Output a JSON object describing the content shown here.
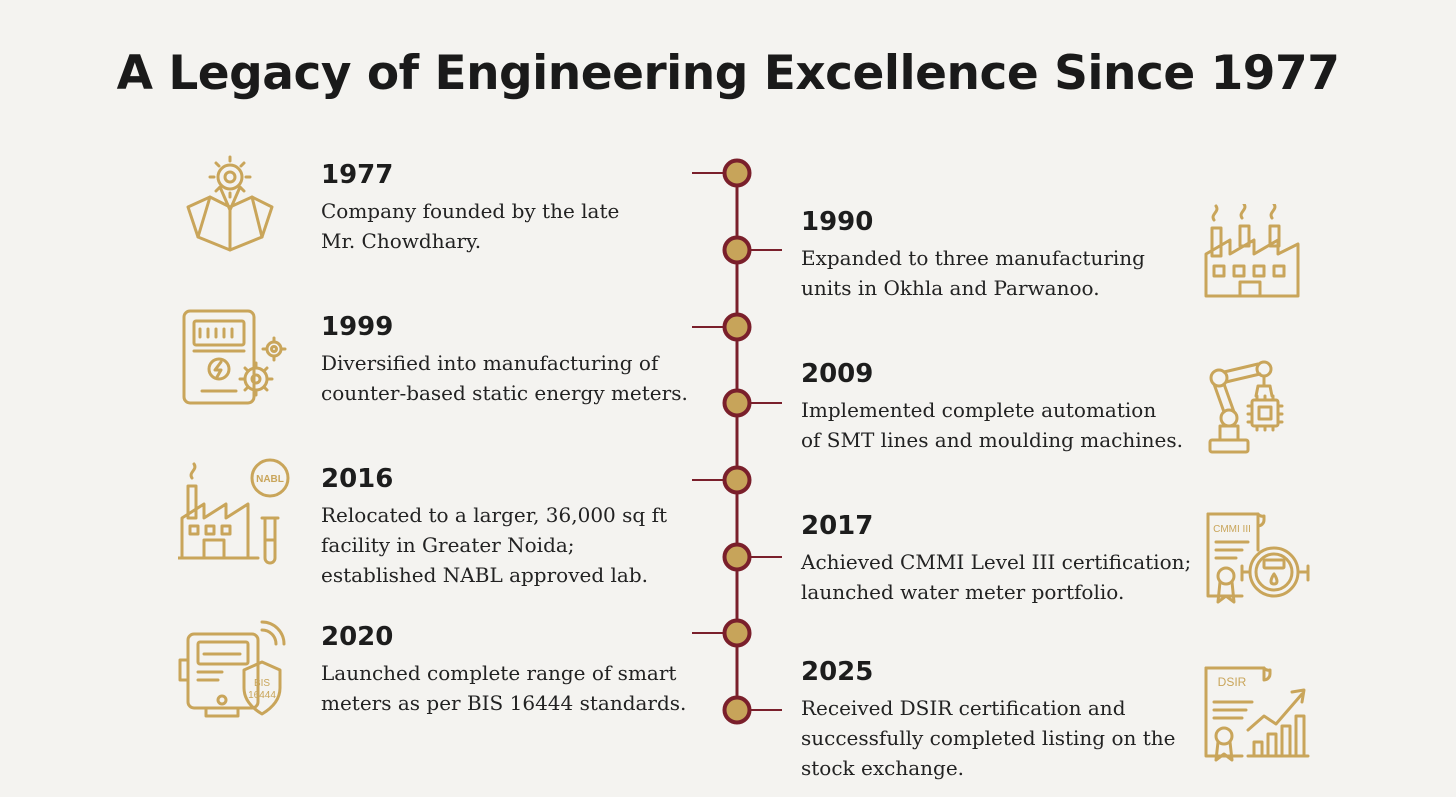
{
  "title": "A Legacy of Engineering Excellence Since 1977",
  "colors": {
    "line": "#7a1f2b",
    "node_fill": "#c7a45a",
    "icon": "#c9a55a",
    "background": "#f4f3f0"
  },
  "milestones": [
    {
      "side": "left",
      "year": "1977",
      "lines": [
        "Company founded by the late",
        "Mr. Chowdhary."
      ],
      "icon": "map-location-gear-icon"
    },
    {
      "side": "right",
      "year": "1990",
      "lines": [
        "Expanded to three manufacturing",
        "units in Okhla and Parwanoo."
      ],
      "icon": "factory-icon"
    },
    {
      "side": "left",
      "year": "1999",
      "lines": [
        "Diversified into manufacturing of",
        "counter-based static energy meters."
      ],
      "icon": "energy-meter-gears-icon"
    },
    {
      "side": "right",
      "year": "2009",
      "lines": [
        "Implemented complete automation",
        "of SMT lines and moulding machines."
      ],
      "icon": "robotic-arm-chip-icon"
    },
    {
      "side": "left",
      "year": "2016",
      "lines": [
        "Relocated to a larger, 36,000 sq ft",
        "facility in Greater Noida;",
        "established NABL approved lab."
      ],
      "icon": "factory-nabl-lab-icon",
      "badge": "NABL"
    },
    {
      "side": "right",
      "year": "2017",
      "lines": [
        "Achieved CMMI Level III certification;",
        "launched water meter portfolio."
      ],
      "icon": "certificate-water-meter-icon",
      "badge": "CMMI III"
    },
    {
      "side": "left",
      "year": "2020",
      "lines": [
        "Launched complete range of smart",
        "meters as per BIS 16444 standards."
      ],
      "icon": "smart-meter-shield-icon",
      "badge": [
        "BIS",
        "16444"
      ]
    },
    {
      "side": "right",
      "year": "2025",
      "lines": [
        "Received DSIR certification and",
        "successfully completed listing on the",
        "stock exchange."
      ],
      "icon": "certificate-growth-chart-icon",
      "badge": "DSIR"
    }
  ]
}
